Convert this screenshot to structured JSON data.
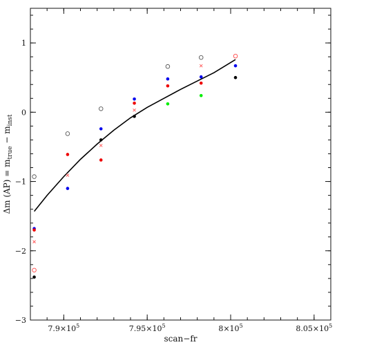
{
  "chart_data": {
    "type": "scatter",
    "title": "",
    "xlabel": "scan−fr",
    "ylabel": {
      "prefix": "Δm (AP) = m",
      "sub1": "true",
      "middle": " − m",
      "sub2": "inst"
    },
    "xlim": [
      788000,
      806000
    ],
    "ylim": [
      -3,
      1.5
    ],
    "x_ticks": [
      {
        "value": 790000,
        "mantissa": "7.9×10",
        "exp": "5"
      },
      {
        "value": 795000,
        "mantissa": "7.95×10",
        "exp": "5"
      },
      {
        "value": 800000,
        "mantissa": "8×10",
        "exp": "5"
      },
      {
        "value": 805000,
        "mantissa": "8.05×10",
        "exp": "5"
      }
    ],
    "y_ticks": [
      {
        "value": -3,
        "label": "−3"
      },
      {
        "value": -2,
        "label": "−2"
      },
      {
        "value": -1,
        "label": "−1"
      },
      {
        "value": 0,
        "label": "0"
      },
      {
        "value": 1,
        "label": "1"
      }
    ],
    "grid": false,
    "series": [
      {
        "style": "open-circle",
        "color": "#555555",
        "points": [
          [
            788230,
            -0.93
          ],
          [
            790230,
            -0.31
          ],
          [
            792230,
            0.05
          ],
          [
            796230,
            0.66
          ],
          [
            798230,
            0.79
          ]
        ]
      },
      {
        "style": "open-circle",
        "color": "#ff4444",
        "points": [
          [
            788230,
            -2.28
          ],
          [
            800290,
            0.81
          ]
        ]
      },
      {
        "style": "cross",
        "color": "#ff5555",
        "points": [
          [
            788230,
            -1.87
          ],
          [
            790230,
            -0.91
          ],
          [
            792230,
            -0.48
          ],
          [
            794230,
            0.03
          ],
          [
            798230,
            0.67
          ]
        ]
      },
      {
        "style": "dot",
        "color": "#0000ee",
        "points": [
          [
            788230,
            -1.68
          ],
          [
            790230,
            -1.1
          ],
          [
            792230,
            -0.24
          ],
          [
            794230,
            0.19
          ],
          [
            796230,
            0.48
          ],
          [
            798230,
            0.51
          ],
          [
            800290,
            0.67
          ]
        ]
      },
      {
        "style": "dot",
        "color": "#ee0000",
        "points": [
          [
            788230,
            -1.7
          ],
          [
            790230,
            -0.61
          ],
          [
            792230,
            -0.69
          ],
          [
            794230,
            0.13
          ],
          [
            796230,
            0.38
          ],
          [
            798230,
            0.42
          ]
        ]
      },
      {
        "style": "dot",
        "color": "#000000",
        "points": [
          [
            788230,
            -2.38
          ],
          [
            792230,
            -0.4
          ],
          [
            794230,
            -0.06
          ],
          [
            800290,
            0.5
          ]
        ]
      },
      {
        "style": "dot",
        "color": "#00ee00",
        "points": [
          [
            796230,
            0.12
          ],
          [
            798230,
            0.24
          ]
        ]
      }
    ],
    "fit_curve": {
      "color": "#000000",
      "points": [
        [
          788230,
          -1.43
        ],
        [
          789000,
          -1.2
        ],
        [
          790000,
          -0.93
        ],
        [
          791000,
          -0.68
        ],
        [
          792000,
          -0.46
        ],
        [
          793000,
          -0.26
        ],
        [
          794000,
          -0.08
        ],
        [
          795000,
          0.07
        ],
        [
          796000,
          0.2
        ],
        [
          797000,
          0.33
        ],
        [
          798000,
          0.45
        ],
        [
          799000,
          0.57
        ],
        [
          800290,
          0.76
        ]
      ]
    }
  }
}
